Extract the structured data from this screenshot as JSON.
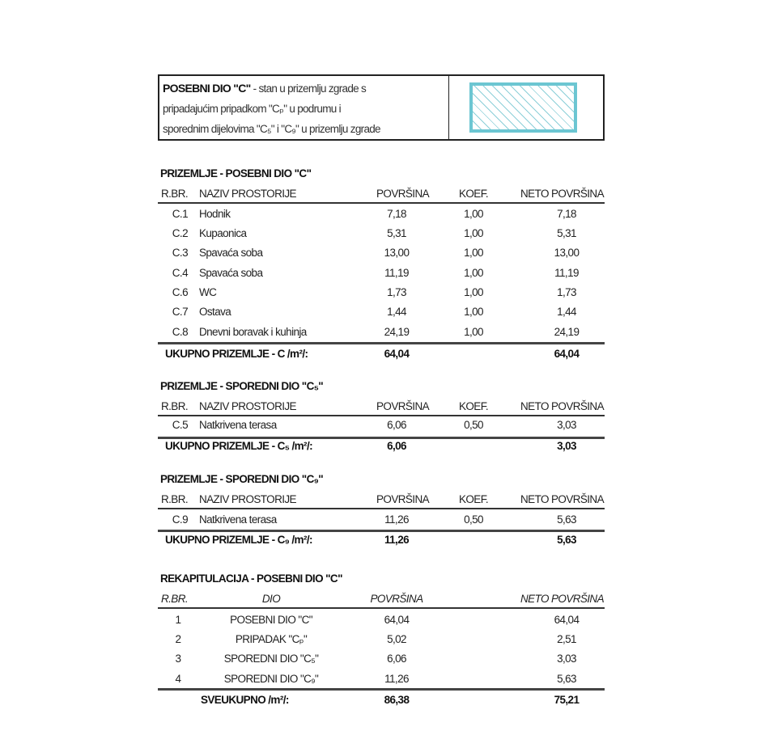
{
  "header_box": {
    "title": "POSEBNI DIO \"C\"",
    "line1_rest": " - stan u prizemlju zgrade s",
    "line2": "pripadajućim pripadkom \"Cₚ\" u podrumu i",
    "line3": "sporednim dijelovima \"C₅\" i \"C₉\" u prizemlju zgrade",
    "hatch_color": "#6cc6d2"
  },
  "sections": [
    {
      "title": "PRIZEMLJE - POSEBNI DIO \"C\"",
      "columns": [
        "R.BR.",
        "NAZIV PROSTORIJE",
        "POVRŠINA",
        "KOEF.",
        "NETO POVRŠINA"
      ],
      "rows": [
        [
          "C.1",
          "Hodnik",
          "7,18",
          "1,00",
          "7,18"
        ],
        [
          "C.2",
          "Kupaonica",
          "5,31",
          "1,00",
          "5,31"
        ],
        [
          "C.3",
          "Spavaća soba",
          "13,00",
          "1,00",
          "13,00"
        ],
        [
          "C.4",
          "Spavaća soba",
          "11,19",
          "1,00",
          "11,19"
        ],
        [
          "C.6",
          "WC",
          "1,73",
          "1,00",
          "1,73"
        ],
        [
          "C.7",
          "Ostava",
          "1,44",
          "1,00",
          "1,44"
        ],
        [
          "C.8",
          "Dnevni boravak i kuhinja",
          "24,19",
          "1,00",
          "24,19"
        ]
      ],
      "total_label": "UKUPNO PRIZEMLJE - C /m²/:",
      "total_area": "64,04",
      "total_net": "64,04"
    },
    {
      "title": "PRIZEMLJE - SPOREDNI DIO \"C₅\"",
      "columns": [
        "R.BR.",
        "NAZIV PROSTORIJE",
        "POVRŠINA",
        "KOEF.",
        "NETO POVRŠINA"
      ],
      "rows": [
        [
          "C.5",
          "Natkrivena terasa",
          "6,06",
          "0,50",
          "3,03"
        ]
      ],
      "total_label": "UKUPNO PRIZEMLJE - C₅ /m²/:",
      "total_area": "6,06",
      "total_net": "3,03"
    },
    {
      "title": "PRIZEMLJE - SPOREDNI DIO \"C₉\"",
      "columns": [
        "R.BR.",
        "NAZIV PROSTORIJE",
        "POVRŠINA",
        "KOEF.",
        "NETO POVRŠINA"
      ],
      "rows": [
        [
          "C.9",
          "Natkrivena terasa",
          "11,26",
          "0,50",
          "5,63"
        ]
      ],
      "total_label": "UKUPNO PRIZEMLJE - C₉ /m²/:",
      "total_area": "11,26",
      "total_net": "5,63"
    }
  ],
  "recap": {
    "title": "REKAPITULACIJA - POSEBNI DIO \"C\"",
    "columns": [
      "R.BR.",
      "DIO",
      "POVRŠINA",
      "NETO POVRŠINA"
    ],
    "rows": [
      [
        "1",
        "POSEBNI DIO \"C\"",
        "64,04",
        "64,04"
      ],
      [
        "2",
        "PRIPADAK \"Cₚ\"",
        "5,02",
        "2,51"
      ],
      [
        "3",
        "SPOREDNI DIO \"C₅\"",
        "6,06",
        "3,03"
      ],
      [
        "4",
        "SPOREDNI DIO \"C₉\"",
        "11,26",
        "5,63"
      ]
    ],
    "total_label": "SVEUKUPNO /m²/:",
    "total_area": "86,38",
    "total_net": "75,21"
  }
}
